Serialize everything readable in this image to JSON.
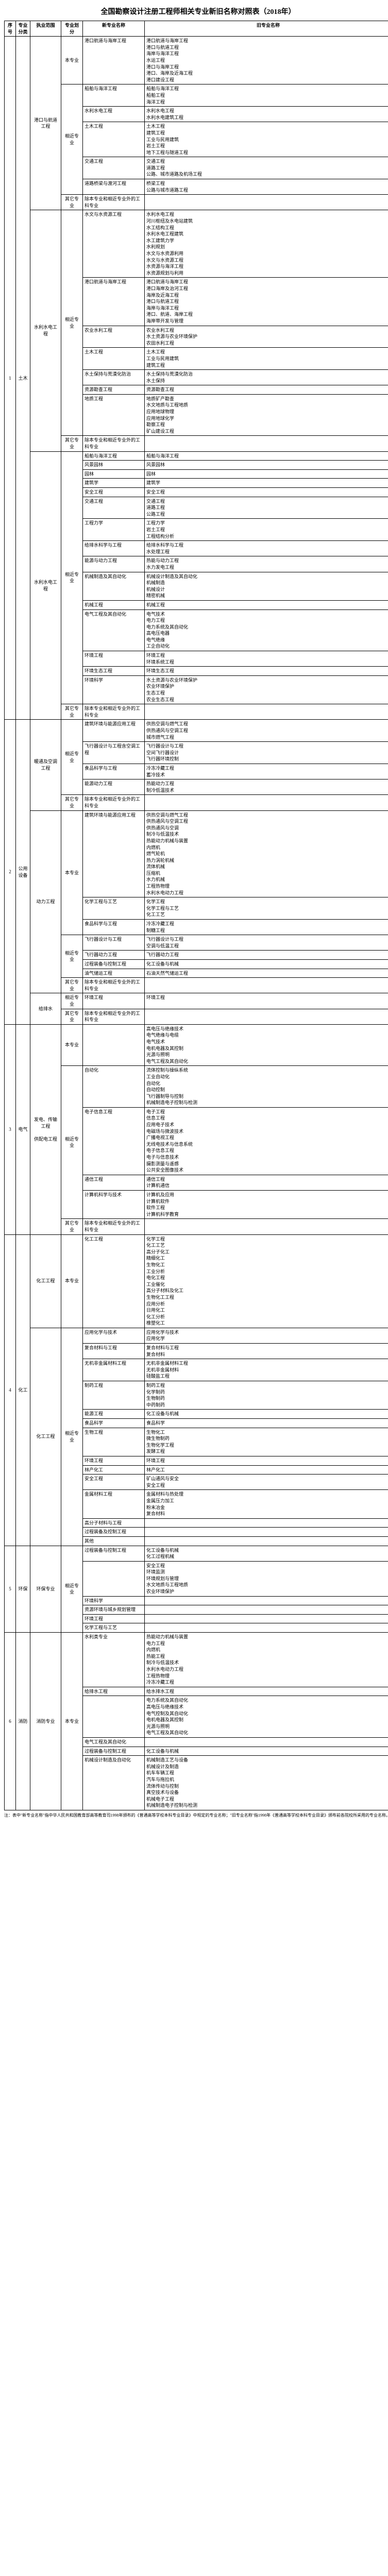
{
  "title": "全国勘察设计注册工程师相关专业新旧名称对照表（2018年）",
  "headers": [
    "序号",
    "专业分类",
    "执业范围",
    "专业划分",
    "新专业名称",
    "旧专业名称"
  ],
  "note": "注：表中\"新专业名称\"指中华人民共和国教育部高等教育司1998年颁布的《普通高等学校本科专业目录》中规定的专业名称；\"旧专业名称\"指1998年《普通高等学校本科专业目录》颁布前各院校所采用的专业名称。",
  "rows": [
    {
      "seq": "1",
      "cat": "土木",
      "ranges": [
        {
          "range": "港口与航道工程",
          "groups": [
            {
              "div": "本专业",
              "items": [
                {
                  "new": "港口航道与海岸工程",
                  "old": "港口航道与海岸工程\n港口与航道工程\n海岸与海洋工程\n水运工程\n港口与海岸工程\n港口、海岸及近海工程\n港口建设工程"
                }
              ]
            },
            {
              "div": "相近专业",
              "items": [
                {
                  "new": "船舶与海洋工程",
                  "old": "船舶与海洋工程\n船舶工程\n海洋工程"
                },
                {
                  "new": "水利水电工程",
                  "old": "水利水电工程\n水利水电建筑工程"
                },
                {
                  "new": "土木工程",
                  "old": "土木工程\n建筑工程\n工业与民用建筑\n岩土工程\n地下工程与隧道工程"
                },
                {
                  "new": "交通工程",
                  "old": "交通工程\n道路工程\n公路、城市道路及机场工程"
                },
                {
                  "new": "道路桥梁与渡河工程",
                  "old": "桥梁工程\n公路与城市道路工程"
                }
              ]
            },
            {
              "div": "其它专业",
              "items": [
                {
                  "new": "除本专业和相近专业外的工科专业",
                  "old": ""
                }
              ]
            }
          ]
        },
        {
          "range": "水利水电工程",
          "groups": [
            {
              "div": "相近专业",
              "items": [
                {
                  "new": "水文与水资源工程",
                  "old": "水利水电工程\n河川枢纽及水电站建筑\n水工结构工程\n水利水电工程建筑\n水工建筑力学\n水利规划\n水文与水资源利用\n水文与水资源工程\n水资源与海洋工程\n水资源规划与利用"
                },
                {
                  "new": "港口航道与海岸工程",
                  "old": "港口航道与海岸工程\n港口海岸及治河工程\n海岸及近海工程\n港口与航道工程\n海岸与海洋工程\n港口、航道、海岸工程\n海岸带开发与管理"
                },
                {
                  "new": "农业水利工程",
                  "old": "农业水利工程\n水土资源与农业环境保护\n农田水利工程"
                },
                {
                  "new": "土木工程",
                  "old": "土木工程\n工业与民用建筑\n建筑工程"
                },
                {
                  "new": "水土保持与荒漠化防治",
                  "old": "水土保持与荒漠化防治\n水土保持"
                },
                {
                  "new": "资源勘查工程",
                  "old": "资源勘查工程"
                },
                {
                  "new": "地质工程",
                  "old": "地质矿产勘查\n水文地质与工程地质\n应用地球物理\n应用地球化学\n勘察工程\n矿山建设工程"
                }
              ]
            },
            {
              "div": "其它专业",
              "items": [
                {
                  "new": "除本专业和相近专业外的工科专业",
                  "old": ""
                }
              ]
            }
          ]
        },
        {
          "range": "水利水电工程",
          "groups": [
            {
              "div": "相近专业",
              "items": [
                {
                  "new": "船舶与海洋工程",
                  "old": "船舶与海洋工程"
                },
                {
                  "new": "风景园林",
                  "old": "风景园林"
                },
                {
                  "new": "园林",
                  "old": "园林"
                },
                {
                  "new": "建筑学",
                  "old": "建筑学"
                },
                {
                  "new": "安全工程",
                  "old": "安全工程"
                },
                {
                  "new": "交通工程",
                  "old": "交通工程\n道路工程\n公路工程"
                },
                {
                  "new": "工程力学",
                  "old": "工程力学\n岩土工程\n工程结构分析"
                },
                {
                  "new": "给排水科学与工程",
                  "old": "给排水科学与工程\n水处理工程"
                },
                {
                  "new": "能源与动力工程",
                  "old": "热能与动力工程\n水力发电工程"
                },
                {
                  "new": "机械制造及其自动化",
                  "old": "机械设计制造及其自动化\n机械制造\n机械设计\n精密机械"
                },
                {
                  "new": "机械工程",
                  "old": "机械工程"
                },
                {
                  "new": "电气工程及其自动化",
                  "old": "电气技术\n电力工程\n电力系统及其自动化\n高电压电器\n电气绝缘\n工企自动化"
                },
                {
                  "new": "环境工程",
                  "old": "环境工程\n环境系统工程"
                },
                {
                  "new": "环境生态工程",
                  "old": "环境生态工程"
                },
                {
                  "new": "环境科学",
                  "old": "水土资源与农业环境保护\n农业环境保护\n生态工程\n农业生态工程"
                }
              ]
            },
            {
              "div": "其它专业",
              "items": [
                {
                  "new": "除本专业和相近专业外的工科专业",
                  "old": ""
                }
              ]
            }
          ]
        }
      ]
    },
    {
      "seq": "2",
      "cat": "公用设备",
      "ranges": [
        {
          "range": "暖通及空调工程",
          "groups": [
            {
              "div": "相近专业",
              "items": [
                {
                  "new": "建筑环境与能源应用工程",
                  "old": "供热空调与燃气工程\n供热通风与空调工程\n城市燃气工程"
                },
                {
                  "new": "飞行器设计与工程含空调工程",
                  "old": "飞行器设计与工程\n空间飞行器设计\n飞行器环境控制"
                },
                {
                  "new": "食品科学与工程",
                  "old": "冷冻冷藏工程\n蓄冷技术"
                },
                {
                  "new": "能源动力工程",
                  "old": "热能动力工程\n制冷低温技术"
                }
              ]
            },
            {
              "div": "其它专业",
              "items": [
                {
                  "new": "除本专业和相近专业外的工科专业",
                  "old": ""
                }
              ]
            }
          ]
        },
        {
          "range": "动力工程",
          "groups": [
            {
              "div": "本专业",
              "items": [
                {
                  "new": "建筑环境与能源应用工程",
                  "old": "供热空调与燃气工程\n供热通风与空调工程\n供热通风与空调\n制冷与低温技术\n热能动力机械与装置\n内燃机\n燃气轮机\n热力涡轮机械\n流体机械\n压缩机\n水力机械\n工程热物理\n水利水电动力工程"
                },
                {
                  "new": "化学工程与工艺",
                  "old": "化学工程\n化学工程与工艺\n化工工艺"
                },
                {
                  "new": "食品科学与工程",
                  "old": "冷冻冷藏工程\n制糖工程"
                }
              ]
            },
            {
              "div": "相近专业",
              "items": [
                {
                  "new": "飞行器设计与工程",
                  "old": "飞行器设计与工程\n空调与低温工程"
                },
                {
                  "new": "飞行器动力工程",
                  "old": "飞行器动力工程"
                },
                {
                  "new": "过程装备与控制工程",
                  "old": "化工设备与机械"
                },
                {
                  "new": "油气储运工程",
                  "old": "石油天然气储运工程"
                }
              ]
            },
            {
              "div": "其它专业",
              "items": [
                {
                  "new": "除本专业和相近专业外的工科专业",
                  "old": ""
                }
              ]
            }
          ]
        },
        {
          "range": "给排水",
          "groups": [
            {
              "div": "相近专业",
              "items": [
                {
                  "new": "环境工程",
                  "old": "环境工程"
                }
              ]
            },
            {
              "div": "其它专业",
              "items": [
                {
                  "new": "除本专业和相近专业外的工科专业",
                  "old": ""
                }
              ]
            }
          ]
        }
      ]
    },
    {
      "seq": "3",
      "cat": "电气",
      "ranges": [
        {
          "range": "发电、传输工程\n\n供配电工程",
          "groups": [
            {
              "div": "本专业",
              "items": [
                {
                  "new": "",
                  "old": "高电压与绝缘技术\n电气绝缘与电缆\n电气技术\n电机电器及其控制\n光源与照明\n电气工程及其自动化"
                }
              ]
            },
            {
              "div": "相近专业",
              "items": [
                {
                  "new": "自动化",
                  "old": "流体控制与操纵系统\n工业自动化\n自动化\n自动控制\n飞行器制导与控制\n机械制造电子控制与检测"
                },
                {
                  "new": "电子信息工程",
                  "old": "电子工程\n信息工程\n应用电子技术\n电磁场与微波技术\n广播电视工程\n无线电技术与信息系统\n电子信息工程\n电子与信息技术\n摄影测量与遥感\n公共安全图像技术"
                },
                {
                  "new": "通信工程",
                  "old": "通信工程\n计算机通信"
                },
                {
                  "new": "计算机科学与技术",
                  "old": "计算机及应用\n计算机软件\n软件工程\n计算机科学教育"
                }
              ]
            },
            {
              "div": "其它专业",
              "items": [
                {
                  "new": "除本专业和相近专业外的工科专业",
                  "old": ""
                }
              ]
            }
          ]
        }
      ]
    },
    {
      "seq": "4",
      "cat": "化工",
      "ranges": [
        {
          "range": "化工工程",
          "groups": [
            {
              "div": "本专业",
              "items": [
                {
                  "new": "化工工程",
                  "old": "化学工程\n化工工艺\n高分子化工\n精细化工\n生物化工\n工业分析\n电化工程\n工业催化\n高分子材料及化工\n生物化工工程\n应用分析\n日用化工\n化工分析\n橡塑化工"
                }
              ]
            }
          ]
        },
        {
          "range": "化工工程",
          "groups": [
            {
              "div": "相近专业",
              "items": [
                {
                  "new": "应用化学与技术",
                  "old": "应用化学与技术\n应用化学"
                },
                {
                  "new": "复合材料与工程",
                  "old": "复合材料与工程\n复合材料"
                },
                {
                  "new": "无机非金属材料工程",
                  "old": "无机非金属材料工程\n无机非金属材料\n硅酸盐工程"
                },
                {
                  "new": "制药工程",
                  "old": "制药工程\n化学制药\n生物制药\n中药制药"
                },
                {
                  "new": "能源工程",
                  "old": "化工设备与机械"
                },
                {
                  "new": "食品科学",
                  "old": "食品科学"
                },
                {
                  "new": "生物工程",
                  "old": "生物化工\n微生物制药\n生物化学工程\n发酵工程"
                },
                {
                  "new": "环境工程",
                  "old": "环境工程"
                },
                {
                  "new": "林产化工",
                  "old": "林产化工"
                },
                {
                  "new": "安全工程",
                  "old": "矿山通风与安全\n安全工程"
                },
                {
                  "new": "金属材料工程",
                  "old": "金属材料与热处理\n金属压力加工\n粉末冶金\n复合材料"
                },
                {
                  "new": "高分子材料与工程",
                  "old": ""
                },
                {
                  "new": "过程装备及控制工程",
                  "old": ""
                },
                {
                  "new": "其他",
                  "old": ""
                }
              ]
            }
          ]
        }
      ]
    },
    {
      "seq": "5",
      "cat": "环保",
      "ranges": [
        {
          "range": "环保专业",
          "groups": [
            {
              "div": "相近专业",
              "items": [
                {
                  "new": "过程装备与控制工程",
                  "old": "化工设备与机械\n化工过程机械"
                },
                {
                  "new": "",
                  "old": "安全工程\n环境监测\n环境规划与管理\n水文地质与工程地质\n农业环境保护"
                },
                {
                  "new": "环境科学",
                  "old": ""
                },
                {
                  "new": "资源环境与城乡规划管理",
                  "old": ""
                },
                {
                  "new": "环境工程",
                  "old": ""
                },
                {
                  "new": "化学工程与工艺",
                  "old": ""
                }
              ]
            }
          ]
        }
      ]
    },
    {
      "seq": "6",
      "cat": "消防",
      "ranges": [
        {
          "range": "消防专业",
          "groups": [
            {
              "div": "本专业",
              "items": [
                {
                  "new": "水利类专业",
                  "old": "热能动力机械与装置\n电力工程\n内燃机\n热能工程\n制冷与低温技术\n水利水电动力工程\n工程热物理\n冷冻冷藏工程"
                },
                {
                  "new": "给排水工程",
                  "old": "给水排水工程"
                },
                {
                  "new": "",
                  "old": "电力系统及其自动化\n高电压与绝缘技术\n电气控制及其自动化\n电机电器及其控制\n光源与照明\n电气工程及其自动化"
                },
                {
                  "new": "电气工程及其自动化",
                  "old": ""
                },
                {
                  "new": "过程装备与控制工程",
                  "old": "化工设备与机械"
                },
                {
                  "new": "机械设计制造及自动化",
                  "old": "机械制造工艺与设备\n机械设计及制造\n机车车辆工程\n汽车与拖拉机\n流体传动与控制\n真空技术与设备\n机械电子工程\n机械制造电子控制与检测"
                }
              ]
            }
          ]
        }
      ]
    }
  ]
}
